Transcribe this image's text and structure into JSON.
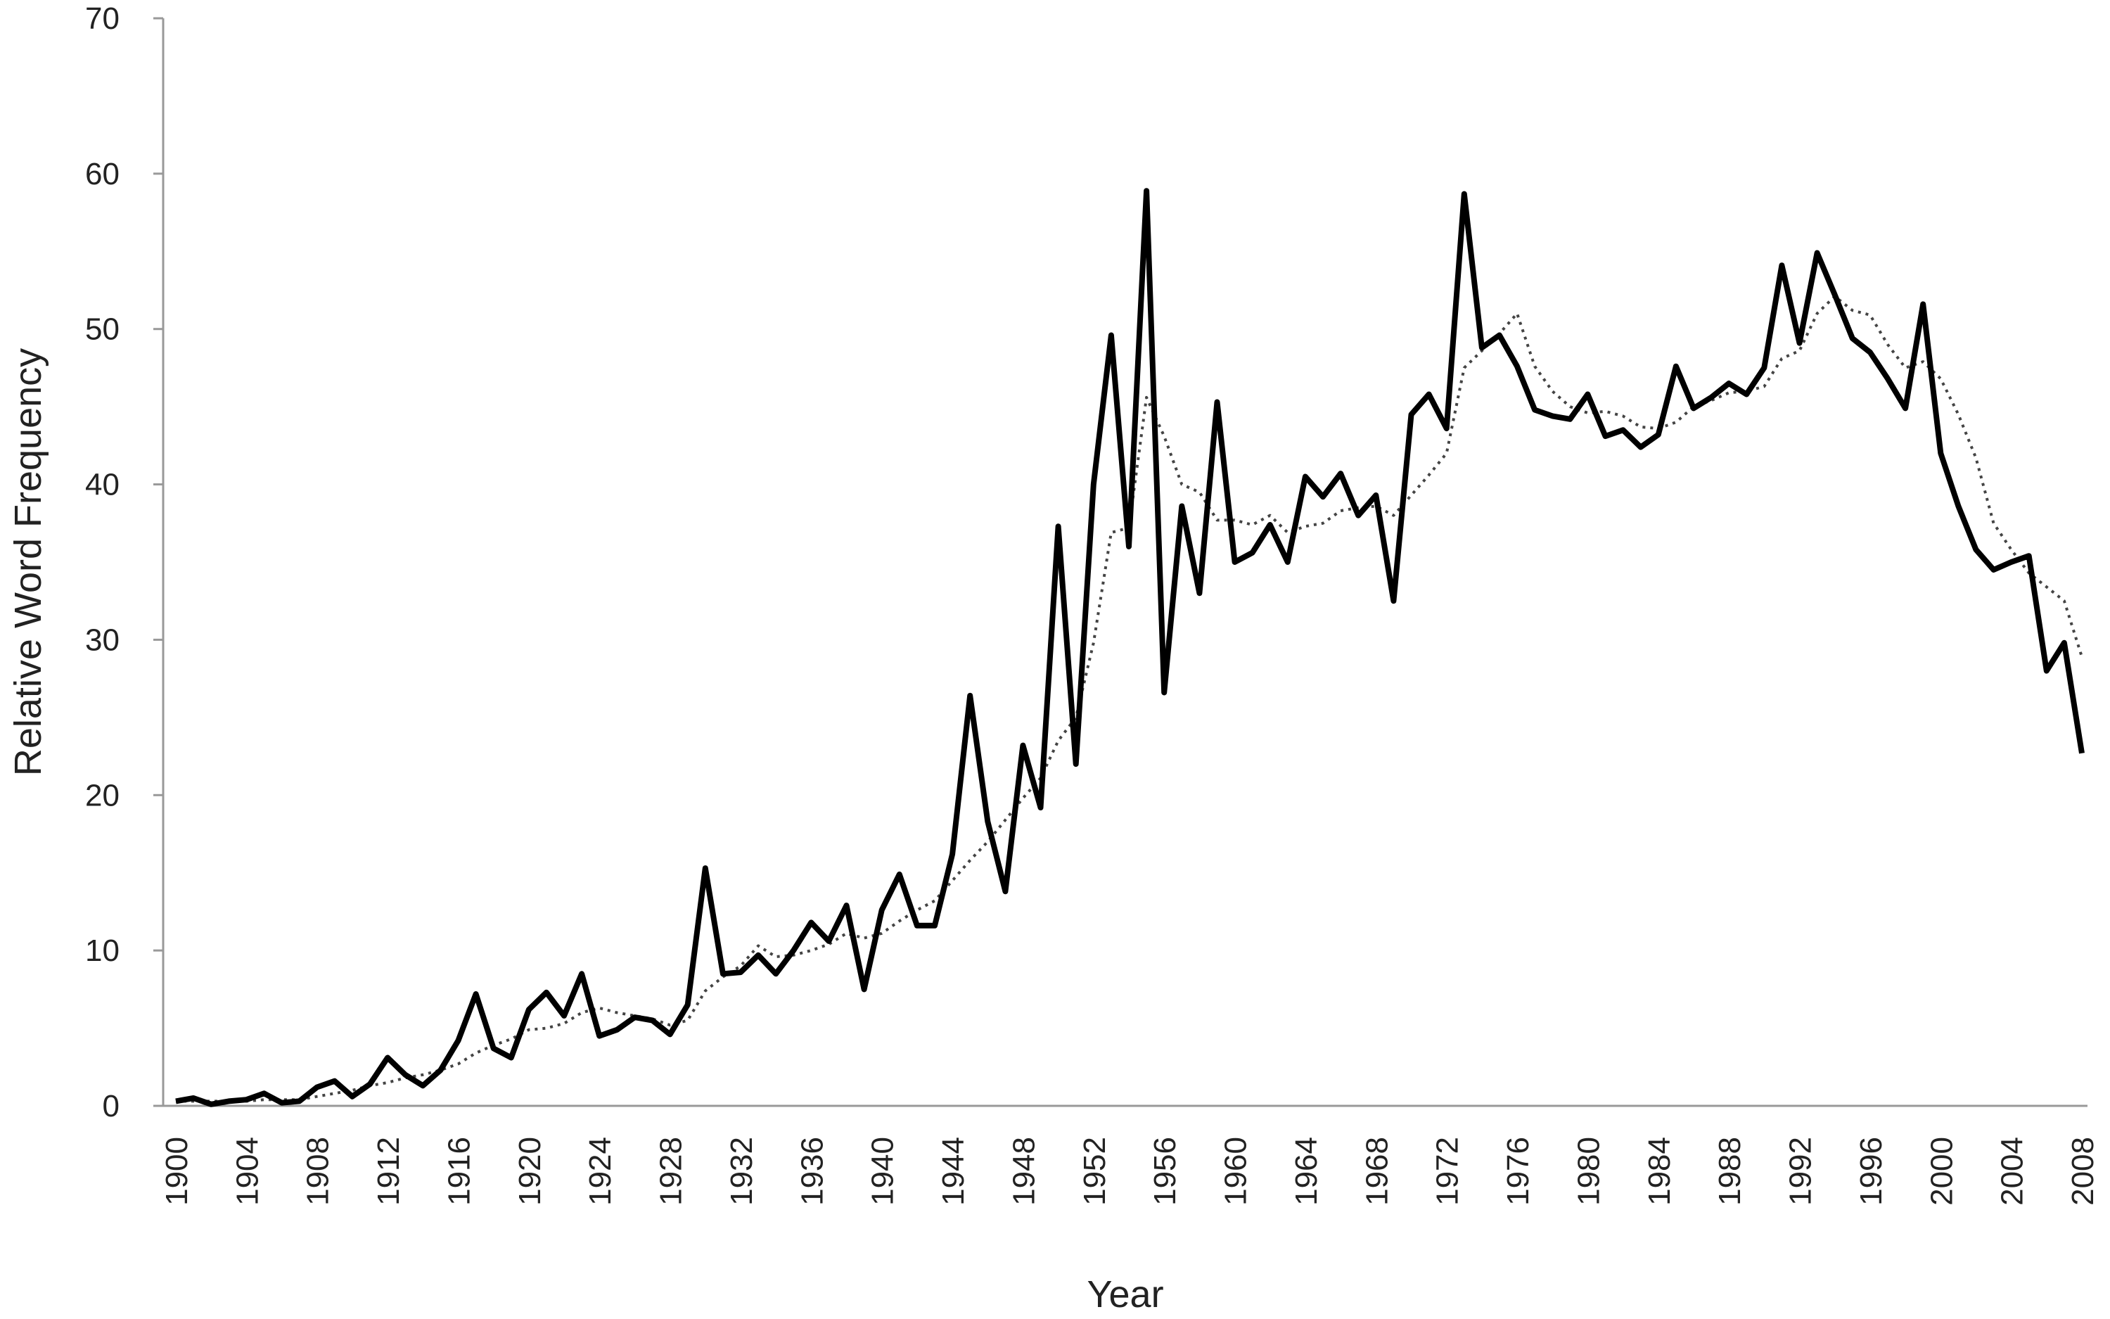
{
  "chart_data": {
    "type": "line",
    "title": "",
    "xlabel": "Year",
    "ylabel": "Relative Word Frequency",
    "xlim": [
      1900,
      2008
    ],
    "ylim": [
      0,
      70
    ],
    "y_ticks": [
      0,
      10,
      20,
      30,
      40,
      50,
      60,
      70
    ],
    "x_ticks": [
      1900,
      1904,
      1908,
      1912,
      1916,
      1920,
      1924,
      1928,
      1932,
      1936,
      1940,
      1944,
      1948,
      1952,
      1956,
      1960,
      1964,
      1968,
      1972,
      1976,
      1980,
      1984,
      1988,
      1992,
      1996,
      2000,
      2004,
      2008
    ],
    "grid": false,
    "legend": "none",
    "x": [
      1900,
      1901,
      1902,
      1903,
      1904,
      1905,
      1906,
      1907,
      1908,
      1909,
      1910,
      1911,
      1912,
      1913,
      1914,
      1915,
      1916,
      1917,
      1918,
      1919,
      1920,
      1921,
      1922,
      1923,
      1924,
      1925,
      1926,
      1927,
      1928,
      1929,
      1930,
      1931,
      1932,
      1933,
      1934,
      1935,
      1936,
      1937,
      1938,
      1939,
      1940,
      1941,
      1942,
      1943,
      1944,
      1945,
      1946,
      1947,
      1948,
      1949,
      1950,
      1951,
      1952,
      1953,
      1954,
      1955,
      1956,
      1957,
      1958,
      1959,
      1960,
      1961,
      1962,
      1963,
      1964,
      1965,
      1966,
      1967,
      1968,
      1969,
      1970,
      1971,
      1972,
      1973,
      1974,
      1975,
      1976,
      1977,
      1978,
      1979,
      1980,
      1981,
      1982,
      1983,
      1984,
      1985,
      1986,
      1987,
      1988,
      1989,
      1990,
      1991,
      1992,
      1993,
      1994,
      1995,
      1996,
      1997,
      1998,
      1999,
      2000,
      2001,
      2002,
      2003,
      2004,
      2005,
      2006,
      2007,
      2008
    ],
    "series": [
      {
        "style": "solid",
        "color": "#000000",
        "values": [
          0.3,
          0.5,
          0.1,
          0.3,
          0.4,
          0.8,
          0.2,
          0.3,
          1.2,
          1.6,
          0.6,
          1.4,
          3.1,
          2.0,
          1.3,
          2.3,
          4.2,
          7.2,
          3.7,
          3.1,
          6.2,
          7.3,
          5.8,
          8.5,
          4.5,
          4.9,
          5.7,
          5.5,
          4.6,
          6.5,
          15.3,
          8.5,
          8.6,
          9.7,
          8.5,
          10.0,
          11.8,
          10.6,
          12.9,
          7.5,
          12.6,
          14.9,
          11.6,
          11.6,
          16.2,
          26.4,
          18.3,
          13.8,
          23.2,
          19.2,
          37.3,
          22.0,
          40.0,
          49.6,
          36.0,
          58.9,
          26.6,
          38.6,
          33.0,
          45.3,
          35.0,
          35.6,
          37.4,
          35.0,
          40.5,
          39.2,
          40.7,
          38.0,
          39.3,
          32.5,
          44.5,
          45.8,
          43.6,
          58.7,
          48.8,
          49.6,
          47.6,
          44.8,
          44.4,
          44.2,
          45.8,
          43.1,
          43.5,
          42.4,
          43.2,
          47.6,
          44.9,
          45.6,
          46.5,
          45.8,
          47.5,
          54.1,
          49.1,
          54.9,
          52.2,
          49.4,
          48.5,
          46.8,
          44.9,
          51.6,
          42.0,
          38.6,
          35.8,
          34.5,
          35.0,
          35.4,
          28.0,
          29.8,
          22.7
        ]
      },
      {
        "style": "dotted",
        "color": "#444444",
        "values": [
          0.3,
          0.3,
          0.3,
          0.3,
          0.3,
          0.4,
          0.4,
          0.4,
          0.6,
          0.8,
          1.0,
          1.3,
          1.5,
          1.8,
          2.0,
          2.3,
          2.7,
          3.4,
          3.9,
          4.3,
          4.9,
          5.0,
          5.3,
          6.0,
          6.3,
          6.0,
          5.8,
          5.6,
          5.2,
          5.5,
          7.4,
          8.3,
          9.0,
          10.3,
          9.6,
          9.7,
          10.0,
          10.4,
          11.1,
          10.8,
          11.1,
          11.9,
          12.6,
          13.2,
          14.5,
          15.8,
          17.0,
          18.4,
          19.8,
          21.1,
          23.5,
          25.0,
          29.8,
          36.9,
          37.2,
          45.6,
          43.1,
          40.0,
          39.5,
          37.7,
          37.7,
          37.4,
          38.0,
          36.9,
          37.3,
          37.5,
          38.3,
          38.5,
          38.6,
          38.0,
          39.3,
          40.6,
          42.0,
          47.5,
          48.6,
          49.7,
          51.0,
          47.6,
          46.0,
          45.0,
          44.6,
          44.7,
          44.4,
          43.7,
          43.6,
          44.0,
          45.0,
          45.4,
          45.9,
          46.0,
          46.3,
          48.1,
          48.6,
          51.0,
          52.1,
          51.2,
          50.9,
          49.0,
          47.5,
          47.9,
          46.8,
          44.5,
          41.7,
          37.5,
          35.8,
          34.3,
          33.4,
          32.5,
          28.9
        ]
      }
    ]
  }
}
